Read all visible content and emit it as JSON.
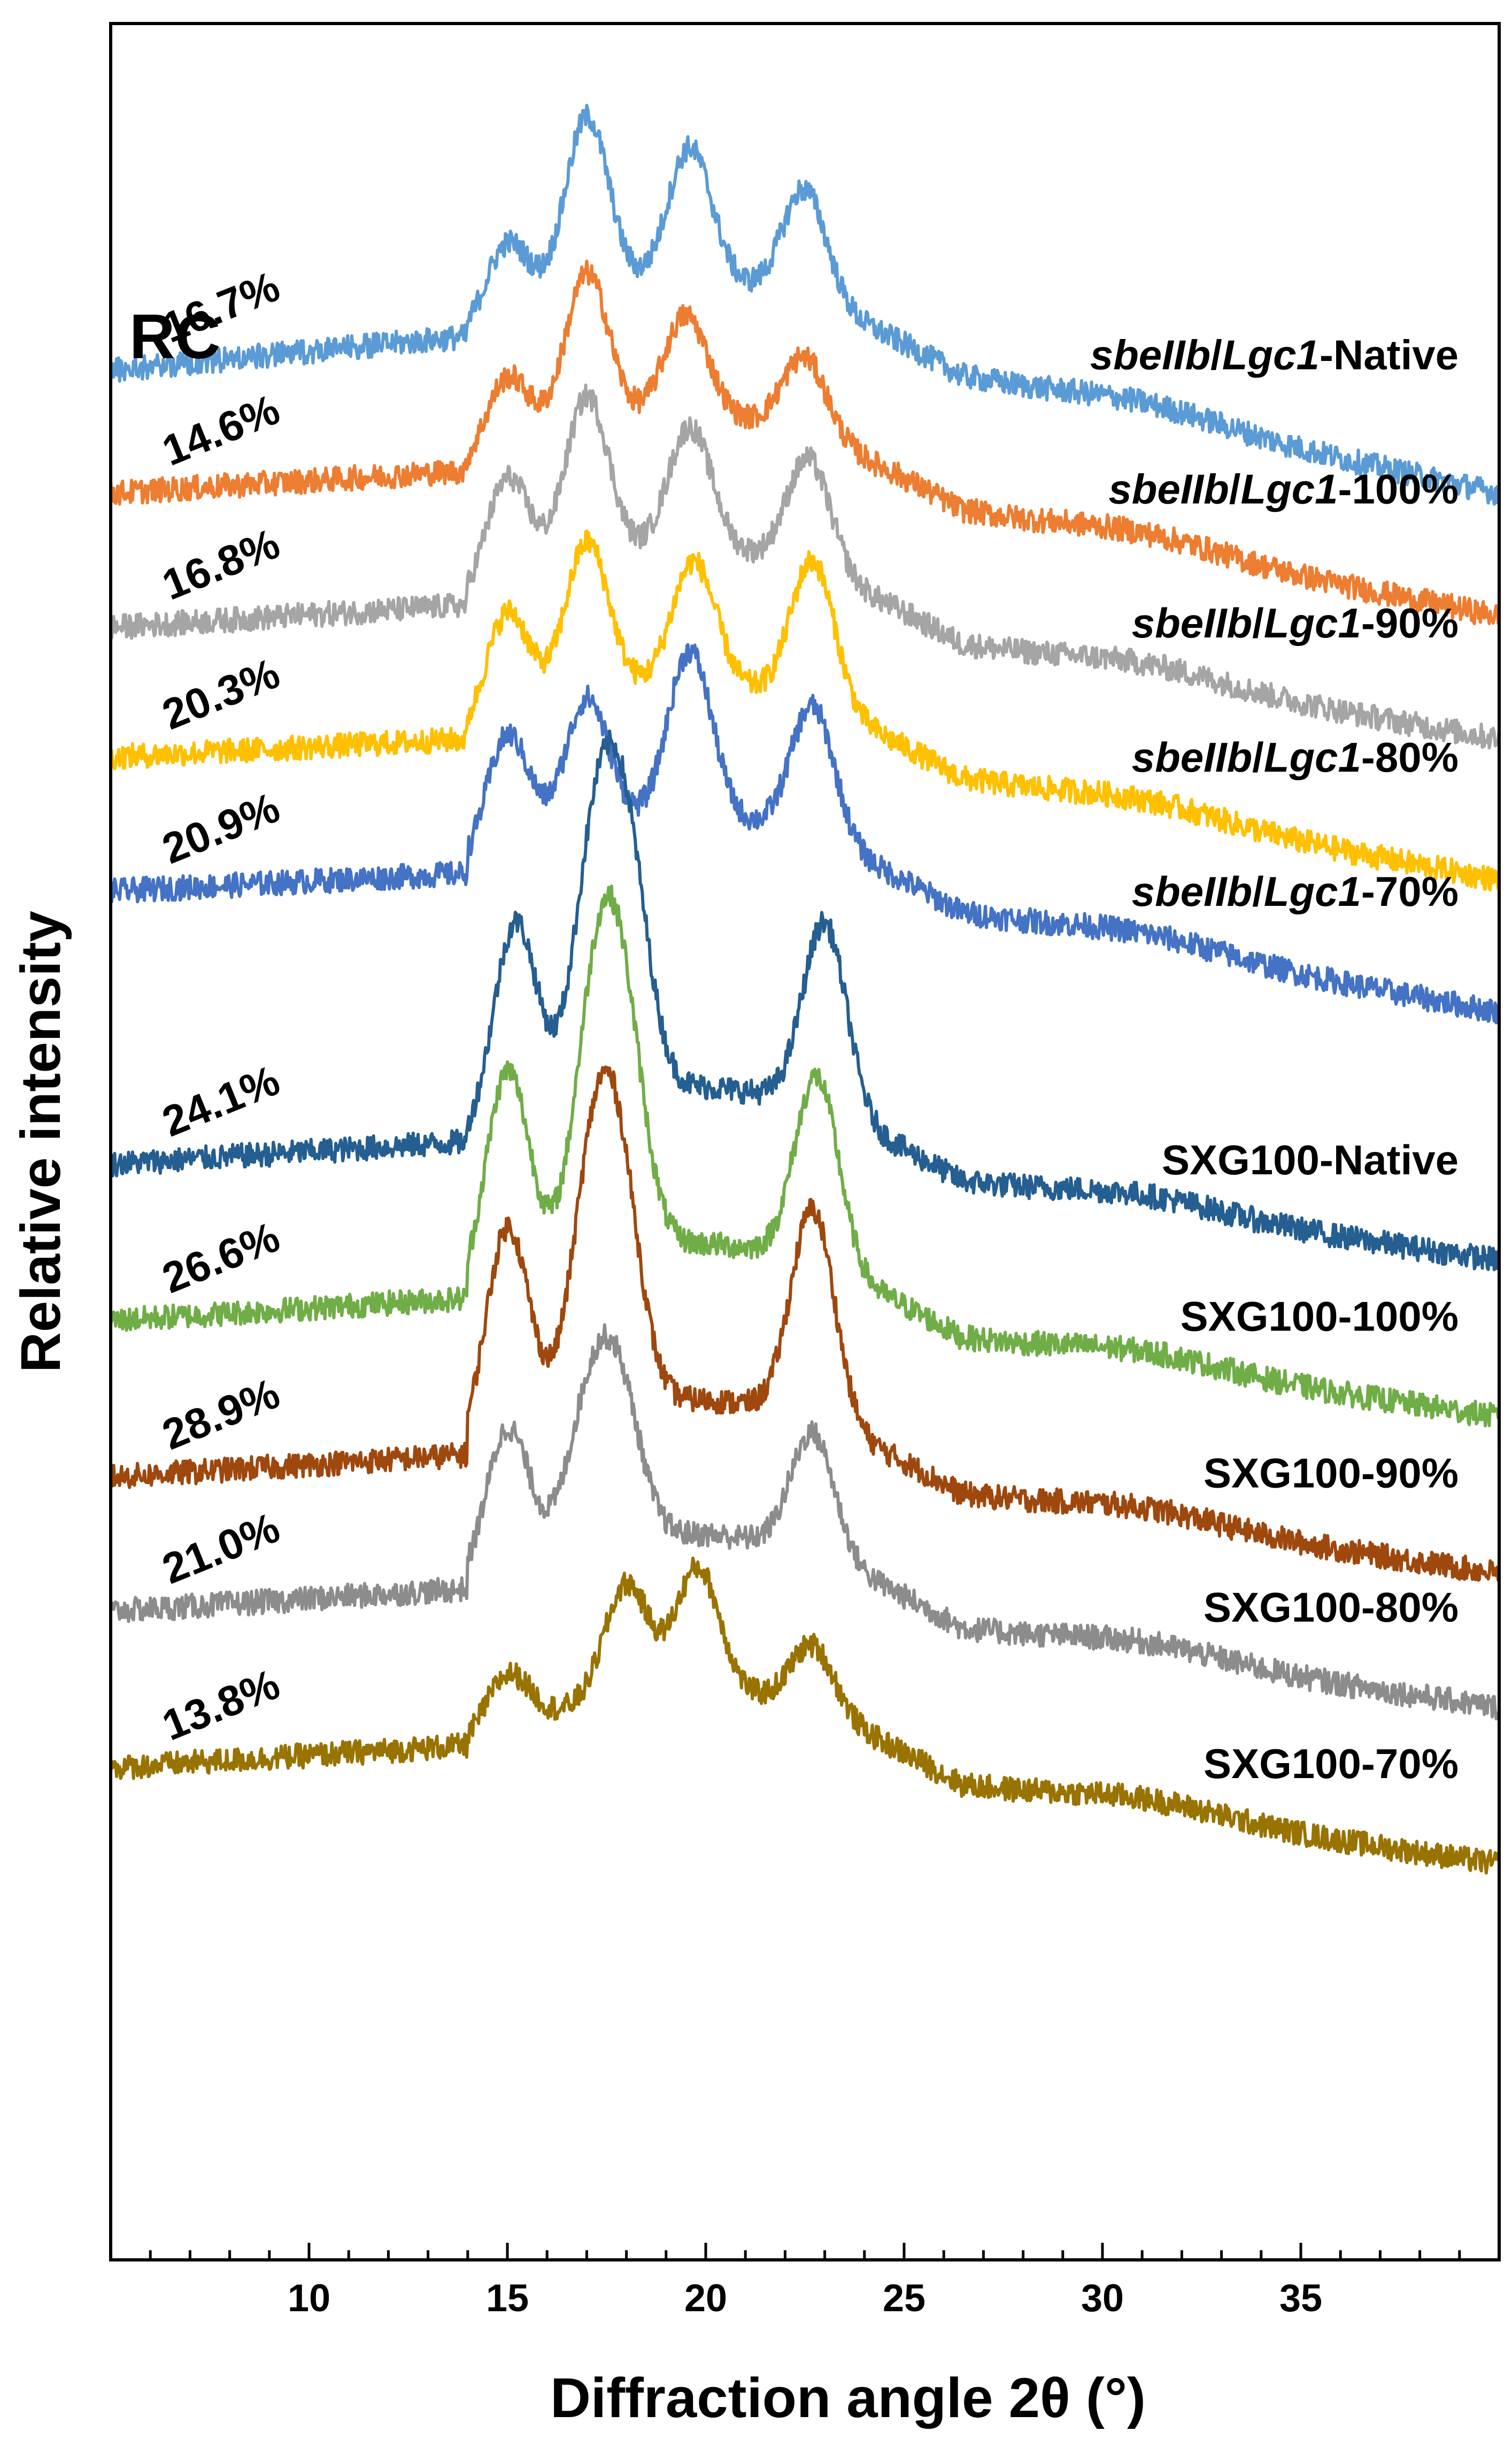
{
  "chart_data": {
    "type": "line",
    "title": "",
    "panel_label": "RC",
    "xlabel": "Diffraction angle 2θ (°)",
    "ylabel": "Relative intensity",
    "xlim": [
      5,
      40
    ],
    "xticks": [
      10,
      15,
      20,
      25,
      30,
      35
    ],
    "xtick_labels": [
      "10",
      "15",
      "20",
      "25",
      "30",
      "35"
    ],
    "y_ticks_shown": false,
    "series": [
      {
        "name": "sbeIIb/Lgc1-Native",
        "label_prefix": "sbeIIb",
        "label_mid": "/",
        "label_italic": "Lgc1",
        "label_suffix": "-Native",
        "rc": "16.7%",
        "color": "#5B9BD5",
        "baseline": 0.86,
        "start": 0.845,
        "end": 0.79,
        "peaks": [
          [
            15,
            0.035
          ],
          [
            17,
            0.08
          ],
          [
            19.6,
            0.06
          ],
          [
            22.5,
            0.05
          ]
        ]
      },
      {
        "name": "sbeIIb/Lgc1-100%",
        "label_prefix": "sbeIIb",
        "label_mid": "/",
        "label_italic": "Lgc1",
        "label_suffix": "-100%",
        "rc": "14.6%",
        "color": "#ED7D31",
        "baseline": 0.8,
        "start": 0.79,
        "end": 0.735,
        "peaks": [
          [
            15,
            0.035
          ],
          [
            17,
            0.07
          ],
          [
            19.5,
            0.045
          ],
          [
            22.5,
            0.035
          ]
        ]
      },
      {
        "name": "sbeIIb/Lgc1-90%",
        "label_prefix": "sbeIIb",
        "label_mid": "/",
        "label_italic": "Lgc1",
        "label_suffix": "-90%",
        "rc": "16.8%",
        "color": "#A5A5A5",
        "baseline": 0.74,
        "start": 0.73,
        "end": 0.68,
        "peaks": [
          [
            15,
            0.05
          ],
          [
            17,
            0.075
          ],
          [
            19.6,
            0.055
          ],
          [
            22.6,
            0.05
          ]
        ]
      },
      {
        "name": "sbeIIb/Lgc1-80%",
        "label_prefix": "sbeIIb",
        "label_mid": "/",
        "label_italic": "Lgc1",
        "label_suffix": "-80%",
        "rc": "20.3%",
        "color": "#FFC000",
        "baseline": 0.68,
        "start": 0.672,
        "end": 0.617,
        "peaks": [
          [
            15,
            0.05
          ],
          [
            17,
            0.07
          ],
          [
            19.7,
            0.055
          ],
          [
            22.7,
            0.065
          ]
        ]
      },
      {
        "name": "sbeIIb/Lgc1-70%",
        "label_prefix": "sbeIIb",
        "label_mid": "/",
        "label_italic": "Lgc1",
        "label_suffix": "-70%",
        "rc": "20.9%",
        "color": "#4472C4",
        "baseline": 0.62,
        "start": 0.612,
        "end": 0.558,
        "peaks": [
          [
            15,
            0.055
          ],
          [
            17,
            0.06
          ],
          [
            19.6,
            0.075
          ],
          [
            22.7,
            0.06
          ]
        ]
      },
      {
        "name": "SXG100-Native",
        "label_prefix": "SXG100-Native",
        "label_mid": "",
        "label_italic": "",
        "label_suffix": "",
        "rc": "24.1%",
        "color": "#255E91",
        "baseline": 0.5,
        "start": 0.49,
        "end": 0.447,
        "peaks": [
          [
            15.2,
            0.09
          ],
          [
            17.2,
            0.105
          ],
          [
            18,
            0.1
          ],
          [
            23,
            0.085
          ]
        ]
      },
      {
        "name": "SXG100-100%",
        "label_prefix": "SXG100-100%",
        "label_mid": "",
        "label_italic": "",
        "label_suffix": "",
        "rc": "26.6%",
        "color": "#70AD47",
        "baseline": 0.43,
        "start": 0.42,
        "end": 0.377,
        "peaks": [
          [
            15,
            0.095
          ],
          [
            17.2,
            0.1
          ],
          [
            17.9,
            0.095
          ],
          [
            22.8,
            0.085
          ]
        ]
      },
      {
        "name": "SXG100-90%",
        "label_prefix": "SXG100-90%",
        "label_mid": "",
        "label_italic": "",
        "label_suffix": "",
        "rc": "28.9%",
        "color": "#9E480E",
        "baseline": 0.36,
        "start": 0.35,
        "end": 0.307,
        "peaks": [
          [
            15,
            0.095
          ],
          [
            17.1,
            0.09
          ],
          [
            17.8,
            0.095
          ],
          [
            22.7,
            0.095
          ]
        ]
      },
      {
        "name": "SXG100-80%",
        "label_prefix": "SXG100-80%",
        "label_mid": "",
        "label_italic": "",
        "label_suffix": "",
        "rc": "21.0%",
        "color": "#8C8C8C",
        "baseline": 0.3,
        "start": 0.29,
        "end": 0.247,
        "peaks": [
          [
            15,
            0.065
          ],
          [
            17,
            0.055
          ],
          [
            17.8,
            0.065
          ],
          [
            22.7,
            0.055
          ]
        ]
      },
      {
        "name": "SXG100-70%",
        "label_prefix": "SXG100-70%",
        "label_mid": "",
        "label_italic": "",
        "label_suffix": "",
        "rc": "13.8%",
        "color": "#997300",
        "baseline": 0.23,
        "start": 0.22,
        "end": 0.177,
        "peaks": [
          [
            15,
            0.025
          ],
          [
            18,
            0.05
          ],
          [
            19.8,
            0.055
          ],
          [
            22.7,
            0.03
          ]
        ]
      }
    ]
  }
}
